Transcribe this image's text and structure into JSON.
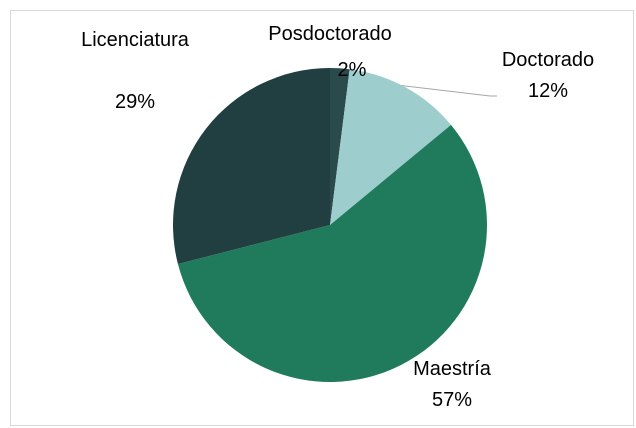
{
  "chart_data": {
    "type": "pie",
    "categories": [
      "Posdoctorado",
      "Doctorado",
      "Maestría",
      "Licenciatura"
    ],
    "values": [
      2,
      12,
      57,
      29
    ],
    "value_labels": [
      "2%",
      "12%",
      "57%",
      "29%"
    ],
    "colors": [
      "#2b4a4b",
      "#9dcdcc",
      "#207b5c",
      "#213f40"
    ]
  }
}
